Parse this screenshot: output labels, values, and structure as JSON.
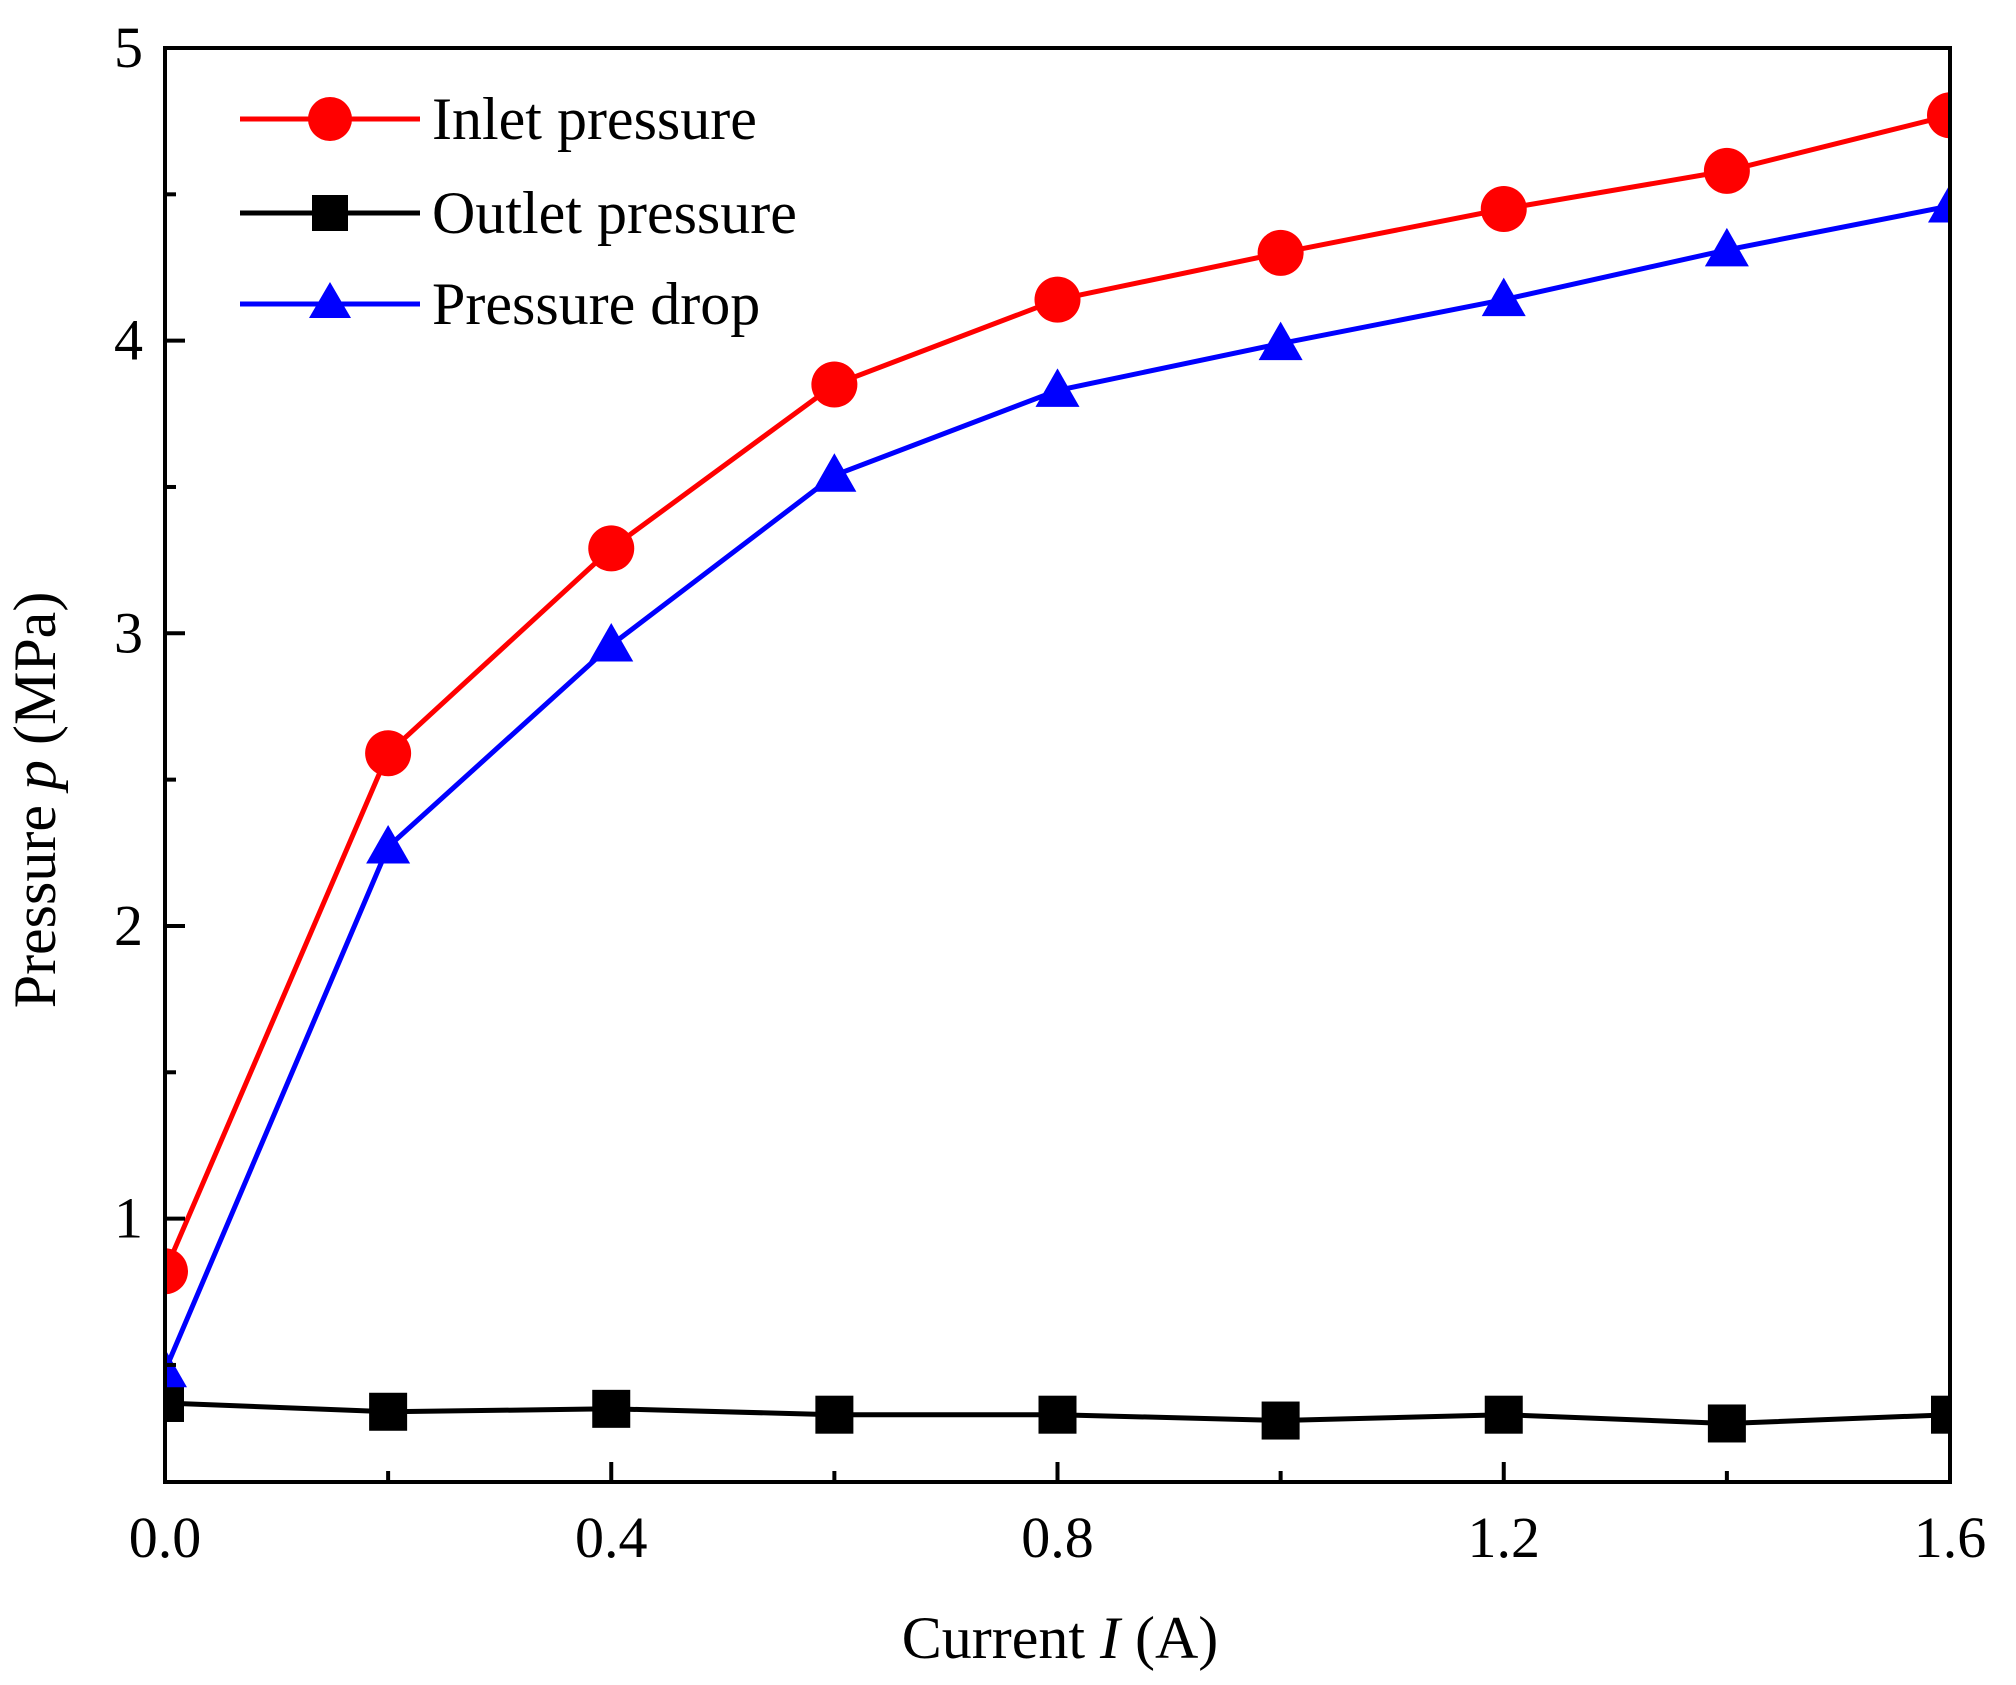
{
  "chart_data": {
    "type": "line",
    "title": "",
    "xlabel": {
      "prefix": "Current ",
      "symbol": "I",
      "suffix": " (A)"
    },
    "ylabel": {
      "prefix": "Pressure ",
      "symbol": "p",
      "suffix": " (MPa)"
    },
    "xlim": [
      0,
      1.6
    ],
    "ylim": [
      0.1,
      5
    ],
    "x_ticks": [
      0.0,
      0.4,
      0.8,
      1.2,
      1.6
    ],
    "x_tick_labels": [
      "0.0",
      "0.4",
      "0.8",
      "1.2",
      "1.6"
    ],
    "x_minor_ticks": [
      0.2,
      0.6,
      1.0,
      1.4
    ],
    "y_ticks": [
      1,
      2,
      3,
      4,
      5
    ],
    "y_tick_labels": [
      "1",
      "2",
      "3",
      "4",
      "5"
    ],
    "y_minor_ticks": [
      0.5,
      1.5,
      2.5,
      3.5,
      4.5
    ],
    "grid": false,
    "legend_position": "top-left",
    "x": [
      0.0,
      0.2,
      0.4,
      0.6,
      0.8,
      1.0,
      1.2,
      1.4,
      1.6
    ],
    "series": [
      {
        "name": "Inlet pressure",
        "color": "#ff0000",
        "marker": "circle",
        "values": [
          0.82,
          2.59,
          3.29,
          3.85,
          4.14,
          4.3,
          4.45,
          4.58,
          4.77
        ]
      },
      {
        "name": "Outlet pressure",
        "color": "#000000",
        "marker": "square",
        "values": [
          0.37,
          0.34,
          0.35,
          0.33,
          0.33,
          0.31,
          0.33,
          0.3,
          0.33
        ]
      },
      {
        "name": "Pressure drop",
        "color": "#0000ff",
        "marker": "triangle",
        "values": [
          0.48,
          2.27,
          2.96,
          3.54,
          3.83,
          3.99,
          4.14,
          4.31,
          4.46
        ]
      }
    ]
  }
}
